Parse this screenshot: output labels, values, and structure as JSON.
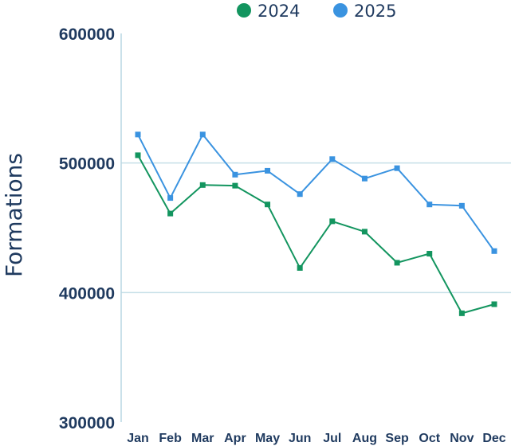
{
  "chart_data": {
    "type": "line",
    "title": "",
    "xlabel": "",
    "ylabel": "Formations",
    "categories": [
      "Jan",
      "Feb",
      "Mar",
      "Apr",
      "May",
      "Jun",
      "Jul",
      "Aug",
      "Sep",
      "Oct",
      "Nov",
      "Dec"
    ],
    "yticks": [
      "600000",
      "500000",
      "400000",
      "300000"
    ],
    "ylim": [
      300000,
      600000
    ],
    "grid": true,
    "legend_position": "top-center",
    "series": [
      {
        "name": "2024",
        "color": "#13955f",
        "values": [
          506000,
          461000,
          483000,
          482500,
          468000,
          419000,
          455000,
          447000,
          423000,
          430000,
          384000,
          391000
        ]
      },
      {
        "name": "2025",
        "color": "#3a93e0",
        "values": [
          522000,
          473000,
          522000,
          491000,
          494000,
          476000,
          503000,
          488000,
          496000,
          468000,
          467000,
          432000
        ]
      }
    ]
  }
}
